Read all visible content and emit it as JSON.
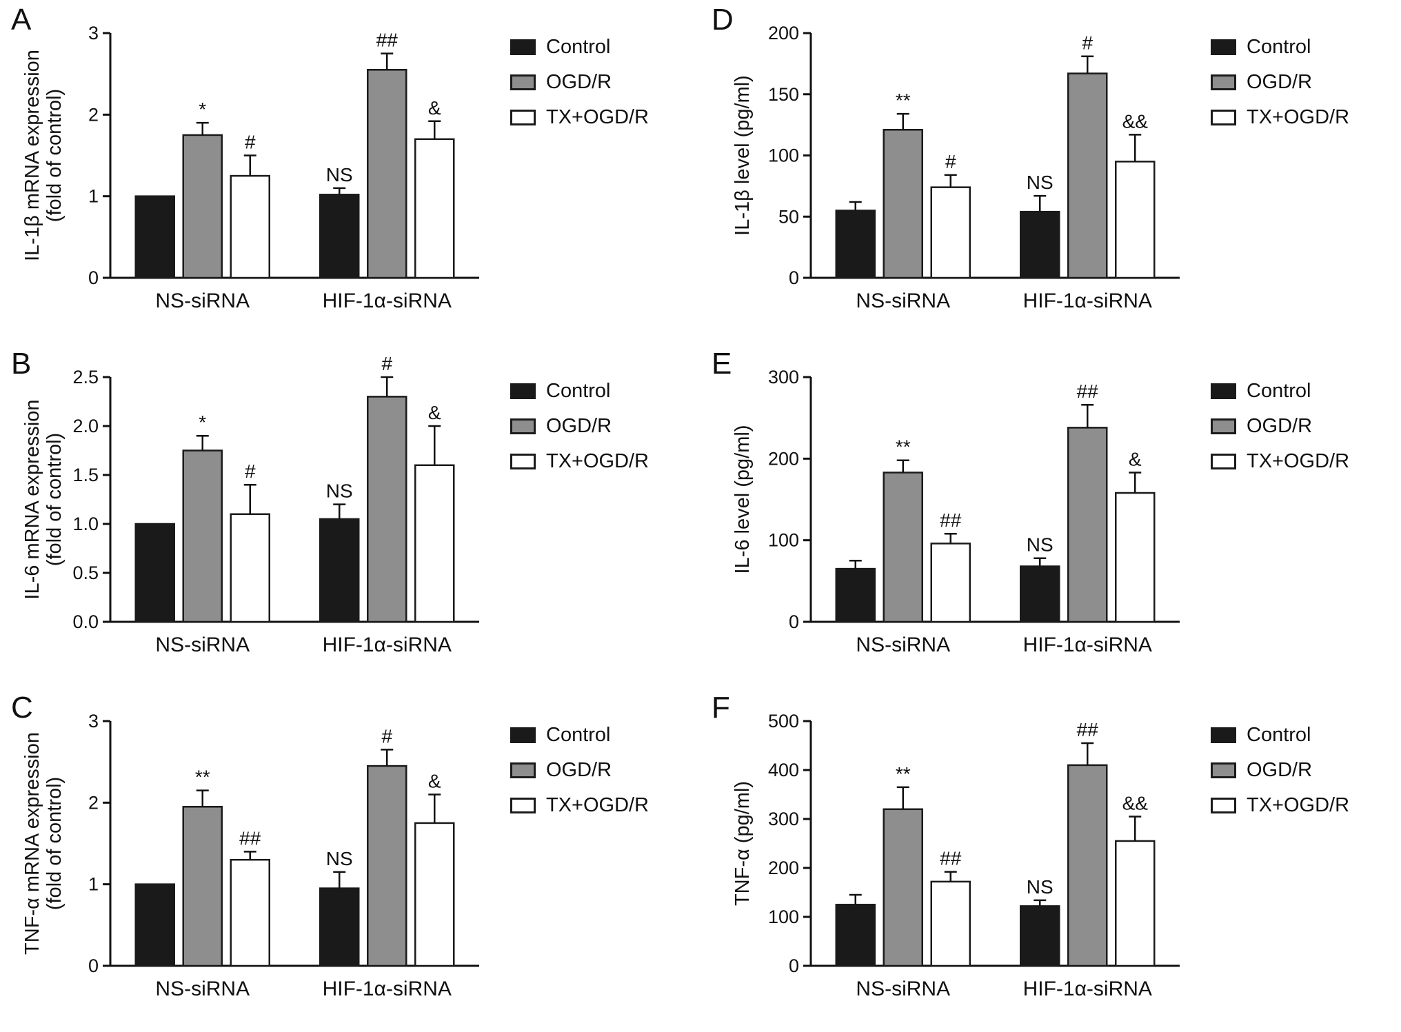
{
  "figure": {
    "background": "#ffffff",
    "text_color": "#111111"
  },
  "legend": {
    "position": "right",
    "entries": [
      {
        "name": "Control",
        "fill": "#1a1a1a",
        "stroke": "#1a1a1a"
      },
      {
        "name": "OGD/R",
        "fill": "#8e8e8e",
        "stroke": "#1a1a1a"
      },
      {
        "name": "TX+OGD/R",
        "fill": "#ffffff",
        "stroke": "#1a1a1a"
      }
    ]
  },
  "chart_data": [
    {
      "panel": "A",
      "type": "bar",
      "ylabel_lines": [
        "IL-1β mRNA expression",
        "(fold of control)"
      ],
      "ylim": [
        0,
        3
      ],
      "ytick_labels": [
        "0",
        "1",
        "2",
        "3"
      ],
      "categories": [
        "NS-siRNA",
        "HIF-1α-siRNA"
      ],
      "grid": false,
      "series": [
        {
          "name": "Control",
          "values": [
            1.0,
            1.02
          ],
          "errors": [
            0,
            0.08
          ],
          "annotations": [
            "",
            "NS"
          ]
        },
        {
          "name": "OGD/R",
          "values": [
            1.75,
            2.55
          ],
          "errors": [
            0.15,
            0.2
          ],
          "annotations": [
            "*",
            "##"
          ]
        },
        {
          "name": "TX+OGD/R",
          "values": [
            1.25,
            1.7
          ],
          "errors": [
            0.25,
            0.22
          ],
          "annotations": [
            "#",
            "&"
          ]
        }
      ]
    },
    {
      "panel": "B",
      "type": "bar",
      "ylabel_lines": [
        "IL-6 mRNA expression",
        "(fold of control)"
      ],
      "ylim": [
        0,
        2.5
      ],
      "ytick_labels": [
        "0.0",
        "0.5",
        "1.0",
        "1.5",
        "2.0",
        "2.5"
      ],
      "categories": [
        "NS-siRNA",
        "HIF-1α-siRNA"
      ],
      "grid": false,
      "series": [
        {
          "name": "Control",
          "values": [
            1.0,
            1.05
          ],
          "errors": [
            0,
            0.15
          ],
          "annotations": [
            "",
            "NS"
          ]
        },
        {
          "name": "OGD/R",
          "values": [
            1.75,
            2.3
          ],
          "errors": [
            0.15,
            0.2
          ],
          "annotations": [
            "*",
            "#"
          ]
        },
        {
          "name": "TX+OGD/R",
          "values": [
            1.1,
            1.6
          ],
          "errors": [
            0.3,
            0.4
          ],
          "annotations": [
            "#",
            "&"
          ]
        }
      ]
    },
    {
      "panel": "C",
      "type": "bar",
      "ylabel_lines": [
        "TNF-α mRNA expression",
        "(fold of control)"
      ],
      "ylim": [
        0,
        3
      ],
      "ytick_labels": [
        "0",
        "1",
        "2",
        "3"
      ],
      "categories": [
        "NS-siRNA",
        "HIF-1α-siRNA"
      ],
      "grid": false,
      "series": [
        {
          "name": "Control",
          "values": [
            1.0,
            0.95
          ],
          "errors": [
            0,
            0.2
          ],
          "annotations": [
            "",
            "NS"
          ]
        },
        {
          "name": "OGD/R",
          "values": [
            1.95,
            2.45
          ],
          "errors": [
            0.2,
            0.2
          ],
          "annotations": [
            "**",
            "#"
          ]
        },
        {
          "name": "TX+OGD/R",
          "values": [
            1.3,
            1.75
          ],
          "errors": [
            0.1,
            0.35
          ],
          "annotations": [
            "##",
            "&"
          ]
        }
      ]
    },
    {
      "panel": "D",
      "type": "bar",
      "ylabel_lines": [
        "IL-1β level (pg/ml)"
      ],
      "ylim": [
        0,
        200
      ],
      "ytick_labels": [
        "0",
        "50",
        "100",
        "150",
        "200"
      ],
      "categories": [
        "NS-siRNA",
        "HIF-1α-siRNA"
      ],
      "grid": false,
      "series": [
        {
          "name": "Control",
          "values": [
            55,
            54
          ],
          "errors": [
            7,
            13
          ],
          "annotations": [
            "",
            "NS"
          ]
        },
        {
          "name": "OGD/R",
          "values": [
            121,
            167
          ],
          "errors": [
            13,
            14
          ],
          "annotations": [
            "**",
            "#"
          ]
        },
        {
          "name": "TX+OGD/R",
          "values": [
            74,
            95
          ],
          "errors": [
            10,
            22
          ],
          "annotations": [
            "#",
            "&&"
          ]
        }
      ]
    },
    {
      "panel": "E",
      "type": "bar",
      "ylabel_lines": [
        "IL-6 level (pg/ml)"
      ],
      "ylim": [
        0,
        300
      ],
      "ytick_labels": [
        "0",
        "100",
        "200",
        "300"
      ],
      "categories": [
        "NS-siRNA",
        "HIF-1α-siRNA"
      ],
      "grid": false,
      "series": [
        {
          "name": "Control",
          "values": [
            65,
            68
          ],
          "errors": [
            10,
            10
          ],
          "annotations": [
            "",
            "NS"
          ]
        },
        {
          "name": "OGD/R",
          "values": [
            183,
            238
          ],
          "errors": [
            15,
            28
          ],
          "annotations": [
            "**",
            "##"
          ]
        },
        {
          "name": "TX+OGD/R",
          "values": [
            96,
            158
          ],
          "errors": [
            12,
            25
          ],
          "annotations": [
            "##",
            "&"
          ]
        }
      ]
    },
    {
      "panel": "F",
      "type": "bar",
      "ylabel_lines": [
        "TNF-α (pg/ml)"
      ],
      "ylim": [
        0,
        500
      ],
      "ytick_labels": [
        "0",
        "100",
        "200",
        "300",
        "400",
        "500"
      ],
      "categories": [
        "NS-siRNA",
        "HIF-1α-siRNA"
      ],
      "grid": false,
      "series": [
        {
          "name": "Control",
          "values": [
            125,
            122
          ],
          "errors": [
            20,
            12
          ],
          "annotations": [
            "",
            "NS"
          ]
        },
        {
          "name": "OGD/R",
          "values": [
            320,
            410
          ],
          "errors": [
            45,
            45
          ],
          "annotations": [
            "**",
            "##"
          ]
        },
        {
          "name": "TX+OGD/R",
          "values": [
            172,
            255
          ],
          "errors": [
            20,
            50
          ],
          "annotations": [
            "##",
            "&&"
          ]
        }
      ]
    }
  ]
}
